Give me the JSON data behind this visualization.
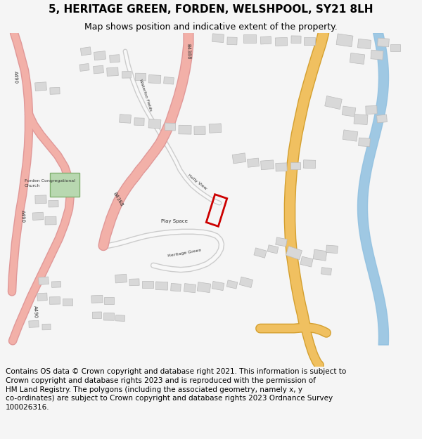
{
  "title_line1": "5, HERITAGE GREEN, FORDEN, WELSHPOOL, SY21 8LH",
  "title_line2": "Map shows position and indicative extent of the property.",
  "footer_text": "Contains OS data © Crown copyright and database right 2021. This information is subject to Crown copyright and database rights 2023 and is reproduced with the permission of HM Land Registry. The polygons (including the associated geometry, namely x, y co-ordinates) are subject to Crown copyright and database rights 2023 Ordnance Survey 100026316.",
  "bg_color": "#f5f5f5",
  "map_bg": "#ffffff",
  "road_pink_fill": "#f2b0a8",
  "road_pink_edge": "#e09898",
  "road_orange_fill": "#f0c060",
  "road_orange_edge": "#d4a030",
  "road_white_fill": "#f8f8f8",
  "road_white_edge": "#cccccc",
  "building_fill": "#d8d8d8",
  "building_edge": "#bbbbbb",
  "water_color": "#90c0e0",
  "green_fill": "#b8d8b0",
  "green_edge": "#80b070",
  "plot_edge": "#cc0000",
  "title_fontsize": 11,
  "sub_fontsize": 9,
  "footer_fontsize": 7.5
}
